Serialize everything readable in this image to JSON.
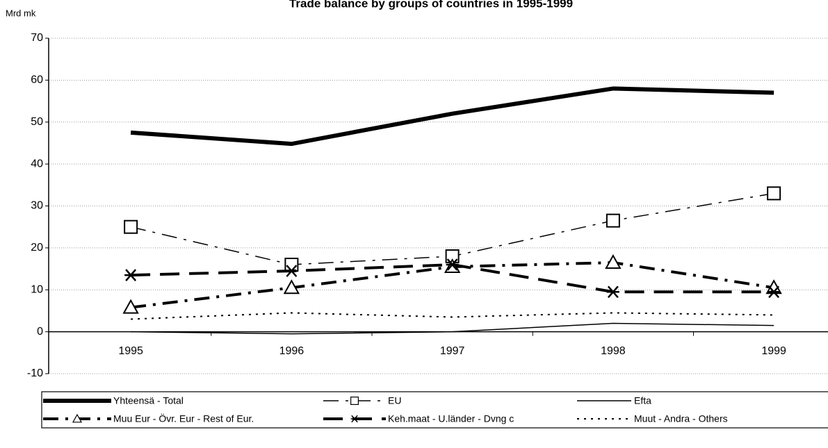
{
  "chart_data": {
    "type": "line",
    "title": "Trade balance by groups of countries in 1995-1999",
    "y_label": "Mrd mk",
    "categories": [
      "1995",
      "1996",
      "1997",
      "1998",
      "1999"
    ],
    "ylim": [
      -10,
      70
    ],
    "yticks": [
      -10,
      0,
      10,
      20,
      30,
      40,
      50,
      60,
      70
    ],
    "grid": true,
    "legend": "bottom",
    "series": [
      {
        "name": "Yhteensä - Total",
        "color": "#000000",
        "linestyle": "solid",
        "linewidth": 6,
        "marker": null,
        "values": [
          47.5,
          44.8,
          52,
          58,
          57
        ]
      },
      {
        "name": "EU",
        "color": "#000000",
        "linestyle": "dashdot",
        "linewidth": 1.5,
        "marker": "square",
        "values": [
          25,
          16,
          18,
          26.5,
          33
        ]
      },
      {
        "name": "Efta",
        "color": "#000000",
        "linestyle": "solid",
        "linewidth": 1.5,
        "marker": null,
        "values": [
          0,
          -0.5,
          0,
          2,
          1.5
        ]
      },
      {
        "name": "Muu Eur - Övr. Eur - Rest of Eur.",
        "color": "#000000",
        "linestyle": "dashdot",
        "linewidth": 4,
        "marker": "triangle",
        "values": [
          5.8,
          10.5,
          15.5,
          16.5,
          10.5
        ]
      },
      {
        "name": "Keh.maat - U.länder - Dvng c",
        "color": "#000000",
        "linestyle": "dashed",
        "linewidth": 4,
        "marker": "asterisk",
        "values": [
          13.5,
          14.5,
          16,
          9.5,
          9.5
        ]
      },
      {
        "name": "Muut - Andra - Others",
        "color": "#000000",
        "linestyle": "dotted",
        "linewidth": 2,
        "marker": null,
        "values": [
          3,
          4.5,
          3.5,
          4.5,
          4
        ]
      }
    ]
  }
}
